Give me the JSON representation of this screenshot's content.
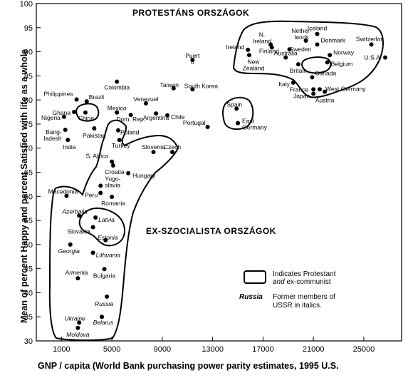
{
  "chart_data": {
    "type": "scatter",
    "title": "",
    "xlabel": "GNP  / capita (World Bank purchasing power parity estimates, 1995 U.S.",
    "ylabel": "Mean of percent Happy and percent Satisfied with life as a whole",
    "xlim": [
      -1000,
      28000
    ],
    "ylim": [
      30,
      100
    ],
    "x_ticks": [
      1000,
      5000,
      9000,
      13000,
      17000,
      21000,
      25000
    ],
    "x_tick_labels": [
      "1000",
      "5000",
      "9000",
      "13000",
      "17000",
      "21000",
      "25000"
    ],
    "y_ticks": [
      30,
      35,
      40,
      45,
      50,
      55,
      60,
      65,
      70,
      75,
      80,
      85,
      90,
      95,
      100
    ],
    "y_tick_labels": [
      "30",
      "35",
      "40",
      "45",
      "50",
      "55",
      "60",
      "65",
      "70",
      "75",
      "80",
      "85",
      "90",
      "95",
      "100"
    ],
    "region_labels": [
      "PROTESTÁNS ORSZÁGOK",
      "EX-SZOCIALISTA ORSZÁGOK"
    ],
    "legend": {
      "box_text_1": "Indicates Protestant",
      "box_text_2a": "and",
      "box_text_2b": " ex-communist",
      "italic_example": "Russia",
      "italic_text_1": "Former members of",
      "italic_text_2": "USSR in italics."
    },
    "points": [
      {
        "label": "Switzerlan",
        "x": 25600,
        "y": 91.5,
        "italic": false
      },
      {
        "label": "U.S.A.",
        "x": 26700,
        "y": 88.8,
        "italic": false
      },
      {
        "label": "Iceland",
        "x": 21300,
        "y": 93.7,
        "italic": false
      },
      {
        "label": "Netherlands",
        "x": 20400,
        "y": 92.3,
        "italic": false
      },
      {
        "label": "Denmark",
        "x": 21300,
        "y": 91.5,
        "italic": false
      },
      {
        "label": "N. Ireland",
        "x": 17600,
        "y": 91.5,
        "italic": false
      },
      {
        "label": "Ireland",
        "x": 15800,
        "y": 90.4,
        "italic": false
      },
      {
        "label": "Finland",
        "x": 17700,
        "y": 90.9,
        "italic": false
      },
      {
        "label": "Sweden",
        "x": 19100,
        "y": 90.5,
        "italic": false
      },
      {
        "label": "Norway",
        "x": 22300,
        "y": 89.3,
        "italic": false
      },
      {
        "label": "New Zealand",
        "x": 15900,
        "y": 89.3,
        "italic": false
      },
      {
        "label": "Australia",
        "x": 18800,
        "y": 88.8,
        "italic": false
      },
      {
        "label": "Britain",
        "x": 19800,
        "y": 87.4,
        "italic": false
      },
      {
        "label": "Belgium",
        "x": 22100,
        "y": 87.8,
        "italic": false
      },
      {
        "label": "Canada",
        "x": 20900,
        "y": 84.7,
        "italic": false
      },
      {
        "label": "Italy",
        "x": 19400,
        "y": 83.6,
        "italic": false
      },
      {
        "label": "France",
        "x": 21000,
        "y": 82.2,
        "italic": false
      },
      {
        "label": "West Germany",
        "x": 21500,
        "y": 82.2,
        "italic": false
      },
      {
        "label": "Japan",
        "x": 21000,
        "y": 81.3,
        "italic": false
      },
      {
        "label": "Austria",
        "x": 21900,
        "y": 81.7,
        "italic": false
      },
      {
        "label": "Puerto Rico",
        "x": 11400,
        "y": 88.3,
        "italic": false
      },
      {
        "label": "Taiwan",
        "x": 9900,
        "y": 82.4,
        "italic": false
      },
      {
        "label": "South Korea",
        "x": 11400,
        "y": 82.2,
        "italic": false
      },
      {
        "label": "Spain",
        "x": 14900,
        "y": 78.2,
        "italic": false
      },
      {
        "label": "East Germany",
        "x": 15000,
        "y": 75.2,
        "italic": false
      },
      {
        "label": "Portugal",
        "x": 12600,
        "y": 74.4,
        "italic": false
      },
      {
        "label": "Colombia",
        "x": 5400,
        "y": 83.8,
        "italic": false
      },
      {
        "label": "Philippines",
        "x": 2200,
        "y": 80.1,
        "italic": false
      },
      {
        "label": "Brazil",
        "x": 3000,
        "y": 79.7,
        "italic": false
      },
      {
        "label": "Venezuel",
        "x": 7700,
        "y": 79.3,
        "italic": false
      },
      {
        "label": "Ghana",
        "x": 2000,
        "y": 77.5,
        "italic": false
      },
      {
        "label": "China",
        "x": 2900,
        "y": 77.4,
        "italic": false
      },
      {
        "label": "Mexico",
        "x": 5400,
        "y": 77.4,
        "italic": false
      },
      {
        "label": "Nigeria",
        "x": 1200,
        "y": 76.5,
        "italic": false
      },
      {
        "label": "Dom. Rep.",
        "x": 6500,
        "y": 76.9,
        "italic": false
      },
      {
        "label": "Argentina",
        "x": 8500,
        "y": 77.2,
        "italic": false
      },
      {
        "label": "Chile",
        "x": 9400,
        "y": 76.8,
        "italic": false
      },
      {
        "label": "Bangladesh",
        "x": 1300,
        "y": 73.8,
        "italic": false
      },
      {
        "label": "Pakistan",
        "x": 3600,
        "y": 74.1,
        "italic": false
      },
      {
        "label": "Poland",
        "x": 5500,
        "y": 73.7,
        "italic": false
      },
      {
        "label": "India",
        "x": 1500,
        "y": 71.7,
        "italic": false
      },
      {
        "label": "Turkey",
        "x": 5600,
        "y": 71.7,
        "italic": false
      },
      {
        "label": "Slovenia",
        "x": 8300,
        "y": 69.2,
        "italic": false
      },
      {
        "label": "Czech",
        "x": 9800,
        "y": 69.2,
        "italic": false
      },
      {
        "label": "S. Africa",
        "x": 5000,
        "y": 67.2,
        "italic": false
      },
      {
        "label": "Croatia",
        "x": 5100,
        "y": 66.4,
        "italic": false
      },
      {
        "label": "Hungary",
        "x": 6300,
        "y": 64.8,
        "italic": false
      },
      {
        "label": "Yugoslavia",
        "x": 4100,
        "y": 62.2,
        "italic": false
      },
      {
        "label": "Macedonia",
        "x": 1400,
        "y": 60.1,
        "italic": false
      },
      {
        "label": "Peru",
        "x": 4100,
        "y": 60.7,
        "italic": false
      },
      {
        "label": "Romania",
        "x": 5000,
        "y": 59.9,
        "italic": false
      },
      {
        "label": "Azerbaija",
        "x": 2400,
        "y": 56.0,
        "italic": true
      },
      {
        "label": "Latvia",
        "x": 3700,
        "y": 55.6,
        "italic": true
      },
      {
        "label": "Slovakia",
        "x": 3500,
        "y": 53.6,
        "italic": false
      },
      {
        "label": "Estonia",
        "x": 4500,
        "y": 50.9,
        "italic": true
      },
      {
        "label": "Georgia",
        "x": 1700,
        "y": 50.0,
        "italic": true
      },
      {
        "label": "Lithuania",
        "x": 3500,
        "y": 48.3,
        "italic": true
      },
      {
        "label": "Armenia",
        "x": 2300,
        "y": 43.0,
        "italic": true
      },
      {
        "label": "Bulgaria",
        "x": 4400,
        "y": 44.9,
        "italic": false
      },
      {
        "label": "Russia",
        "x": 4600,
        "y": 39.2,
        "italic": true
      },
      {
        "label": "Ukraine",
        "x": 2400,
        "y": 33.8,
        "italic": true
      },
      {
        "label": "Belarus",
        "x": 4200,
        "y": 35.0,
        "italic": true
      },
      {
        "label": "Moldova",
        "x": 2300,
        "y": 32.7,
        "italic": true
      }
    ]
  }
}
